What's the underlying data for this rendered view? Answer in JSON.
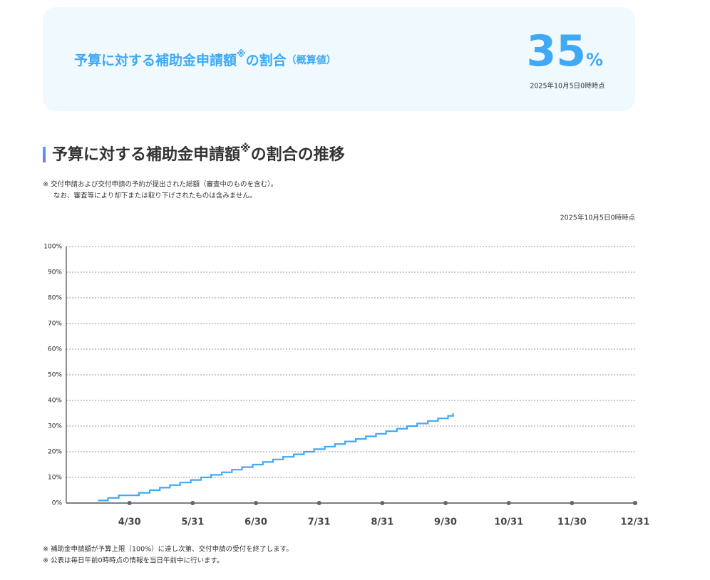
{
  "summary": {
    "title_main": "予算に対する補助金申請額",
    "title_mark": "※",
    "title_rest": "の割合",
    "title_note": "（概算値）",
    "value": 35,
    "unit": "%",
    "as_of": "2025年10月5日0時時点"
  },
  "section": {
    "heading_main": "予算に対する補助金申請額",
    "heading_mark": "※",
    "heading_rest": "の割合の推移",
    "notes": [
      "※ 交付申請および交付申請の予約が提出された総額（審査中のものを含む）。",
      "なお、審査等により却下または取り下げされたものは含みません。"
    ],
    "as_of": "2025年10月5日0時時点"
  },
  "chart_data": {
    "type": "line",
    "step": true,
    "color": "#3fa9f5",
    "grid": true,
    "x": [
      0.5,
      0.66,
      0.83,
      0.99,
      1.15,
      1.32,
      1.48,
      1.64,
      1.8,
      1.97,
      2.13,
      2.29,
      2.46,
      2.62,
      2.78,
      2.95,
      3.11,
      3.27,
      3.43,
      3.6,
      3.76,
      3.92,
      4.09,
      4.25,
      4.41,
      4.58,
      4.74,
      4.9,
      5.06,
      5.23,
      5.39,
      5.55,
      5.72,
      5.88,
      6.04,
      6.12
    ],
    "values": [
      1,
      2,
      3,
      3,
      4,
      5,
      6,
      7,
      8,
      9,
      10,
      11,
      12,
      13,
      14,
      15,
      16,
      17,
      18,
      19,
      20,
      21,
      22,
      23,
      24,
      25,
      26,
      27,
      28,
      29,
      30,
      31,
      32,
      33,
      34,
      35
    ],
    "xlim": [
      0,
      9
    ],
    "xticks": [
      {
        "value": 1,
        "label": "4/30"
      },
      {
        "value": 2,
        "label": "5/31"
      },
      {
        "value": 3,
        "label": "6/30"
      },
      {
        "value": 4,
        "label": "7/31"
      },
      {
        "value": 5,
        "label": "8/31"
      },
      {
        "value": 6,
        "label": "9/30"
      },
      {
        "value": 7,
        "label": "10/31"
      },
      {
        "value": 8,
        "label": "11/30"
      },
      {
        "value": 9,
        "label": "12/31"
      }
    ],
    "ylim": [
      0,
      100
    ],
    "yticks": [
      {
        "value": 0,
        "label": "0%"
      },
      {
        "value": 10,
        "label": "10%"
      },
      {
        "value": 20,
        "label": "20%"
      },
      {
        "value": 30,
        "label": "30%"
      },
      {
        "value": 40,
        "label": "40%"
      },
      {
        "value": 50,
        "label": "50%"
      },
      {
        "value": 60,
        "label": "60%"
      },
      {
        "value": 70,
        "label": "70%"
      },
      {
        "value": 80,
        "label": "80%"
      },
      {
        "value": 90,
        "label": "90%"
      },
      {
        "value": 100,
        "label": "100%"
      }
    ]
  },
  "footnotes": [
    "※ 補助金申請額が予算上限（100%）に達し次第、交付申請の受付を終了します。",
    "※ 公表は毎日午前0時時点の情報を当日午前中に行います。"
  ]
}
